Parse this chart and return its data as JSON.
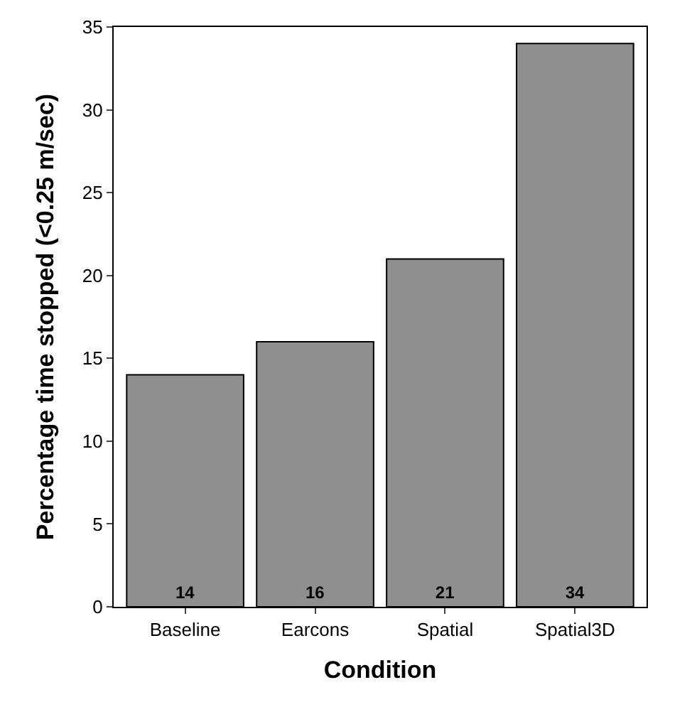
{
  "chart_data": {
    "type": "bar",
    "xlabel": "Condition",
    "ylabel": "Percentage time stopped (<0.25 m/sec)",
    "categories": [
      "Baseline",
      "Earcons",
      "Spatial",
      "Spatial3D"
    ],
    "values": [
      14,
      16,
      21,
      34
    ],
    "color": "#8f8f8f",
    "ylim": [
      0,
      35
    ],
    "yticks": [
      0,
      5,
      10,
      15,
      20,
      25,
      30,
      35
    ],
    "data_labels": true
  }
}
